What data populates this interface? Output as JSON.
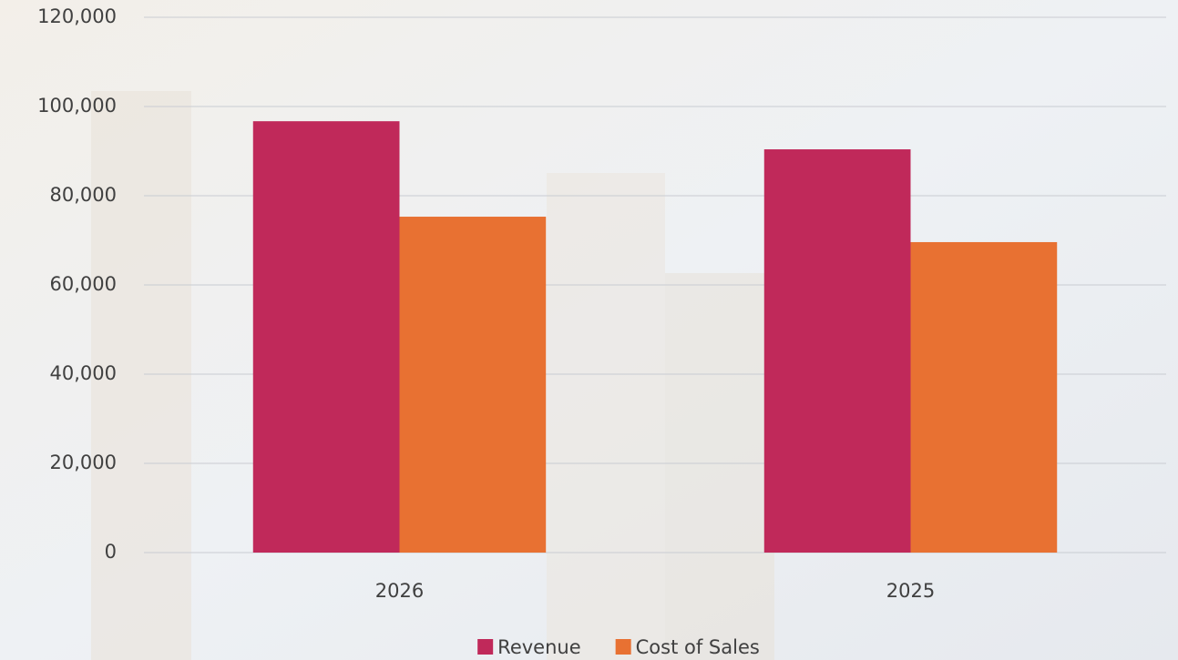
{
  "chart_data": {
    "type": "bar",
    "categories": [
      "2026",
      "2025"
    ],
    "series": [
      {
        "name": "Revenue",
        "color": "#c0295a",
        "values": [
          96700,
          90400
        ]
      },
      {
        "name": "Cost of Sales",
        "color": "#e87132",
        "values": [
          75300,
          69600
        ]
      }
    ],
    "ylim": [
      0,
      120000
    ],
    "yticks": [
      0,
      {
        "value": 20000,
        "label": "20,000"
      },
      {
        "value": 40000,
        "label": "40,000"
      },
      {
        "value": 60000,
        "label": "60,000"
      },
      {
        "value": 80000,
        "label": "80,000"
      },
      {
        "value": 100000,
        "label": "100,000"
      },
      {
        "value": 120000,
        "label": "120,000"
      }
    ],
    "grid": true,
    "legend": "bottom"
  }
}
